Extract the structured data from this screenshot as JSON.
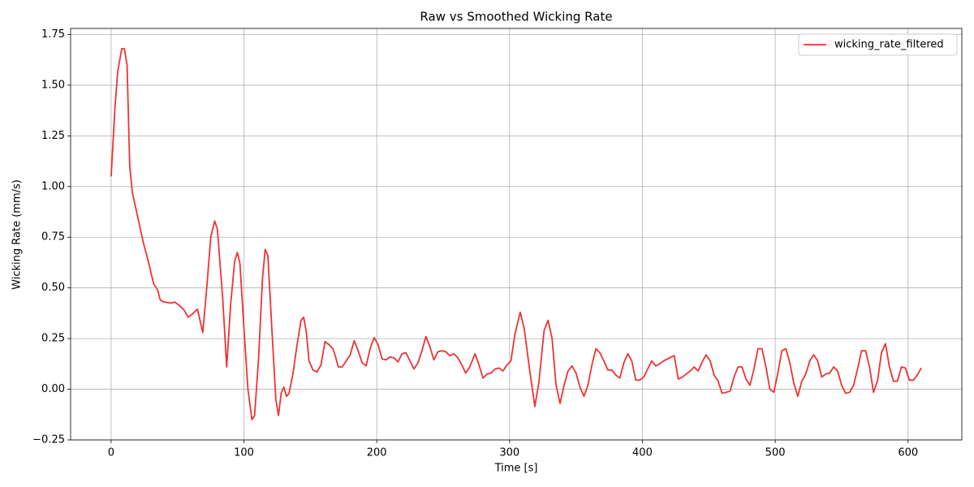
{
  "chart_data": {
    "type": "line",
    "title": "Raw vs Smoothed Wicking Rate",
    "x_label": "Time [s]",
    "y_label": "Wicking Rate (mm/s)",
    "xlim": [
      -30.5,
      640.5
    ],
    "ylim": [
      -0.25,
      1.78
    ],
    "xticks": [
      0,
      100,
      200,
      300,
      400,
      500,
      600
    ],
    "yticks": [
      {
        "value": -0.25,
        "label": "−0.25"
      },
      {
        "value": 0,
        "label": "0.00"
      },
      0.25,
      {
        "value": 0.5,
        "label": "0.50"
      },
      0.75,
      {
        "value": 1,
        "label": "1.00"
      },
      1.25,
      {
        "value": 1.5,
        "label": "1.50"
      },
      1.75
    ],
    "grid": true,
    "legend": "upper right",
    "x": [
      0,
      3,
      5,
      8,
      10,
      12,
      14,
      16,
      20,
      24,
      28,
      32,
      35,
      37,
      40,
      45,
      48,
      52,
      55,
      58,
      61,
      65,
      69,
      72,
      75,
      78,
      80,
      84,
      87,
      90,
      93,
      95,
      97,
      100,
      103,
      106,
      108,
      111,
      114,
      116,
      118,
      121,
      124,
      126,
      128,
      130,
      132,
      134,
      137,
      140,
      143,
      145,
      147,
      149,
      152,
      155,
      158,
      161,
      164,
      167,
      169,
      171,
      174,
      177,
      180,
      183,
      186,
      189,
      192,
      195,
      198,
      201,
      204,
      207,
      210,
      213,
      216,
      219,
      222,
      225,
      228,
      231,
      234,
      237,
      240,
      243,
      246,
      249,
      252,
      255,
      258,
      261,
      264,
      267,
      270,
      274,
      277,
      280,
      283,
      286,
      289,
      292,
      295,
      298,
      301,
      304,
      308,
      311,
      315,
      319,
      322,
      326,
      329,
      332,
      335,
      338,
      341,
      344,
      347,
      350,
      353,
      356,
      359,
      362,
      365,
      368,
      371,
      374,
      377,
      380,
      383,
      386,
      389,
      392,
      395,
      398,
      401,
      404,
      407,
      410,
      413,
      416,
      419,
      422,
      424,
      427,
      430,
      433,
      436,
      439,
      442,
      445,
      448,
      451,
      454,
      457,
      460,
      463,
      466,
      469,
      472,
      475,
      478,
      481,
      484,
      487,
      490,
      493,
      496,
      499,
      502,
      505,
      508,
      511,
      514,
      517,
      520,
      523,
      526,
      529,
      532,
      535,
      538,
      541,
      544,
      547,
      550,
      553,
      556,
      559,
      562,
      565,
      568,
      571,
      574,
      577,
      580,
      583,
      586,
      589,
      592,
      595,
      598,
      601,
      604,
      607,
      610
    ],
    "series": [
      {
        "name": "wicking_rate_filtered",
        "color": "#ee3333",
        "values": [
          1.05,
          1.4,
          1.57,
          1.68,
          1.68,
          1.6,
          1.1,
          0.97,
          0.85,
          0.73,
          0.63,
          0.52,
          0.49,
          0.44,
          0.43,
          0.425,
          0.43,
          0.41,
          0.39,
          0.355,
          0.37,
          0.395,
          0.28,
          0.5,
          0.75,
          0.83,
          0.79,
          0.45,
          0.11,
          0.42,
          0.63,
          0.675,
          0.62,
          0.3,
          0.0,
          -0.15,
          -0.13,
          0.15,
          0.55,
          0.69,
          0.66,
          0.3,
          -0.05,
          -0.13,
          -0.02,
          0.01,
          -0.035,
          -0.02,
          0.08,
          0.22,
          0.34,
          0.355,
          0.28,
          0.14,
          0.095,
          0.085,
          0.12,
          0.235,
          0.22,
          0.2,
          0.16,
          0.11,
          0.11,
          0.14,
          0.17,
          0.24,
          0.19,
          0.13,
          0.115,
          0.2,
          0.255,
          0.22,
          0.15,
          0.145,
          0.16,
          0.155,
          0.135,
          0.175,
          0.18,
          0.14,
          0.1,
          0.13,
          0.19,
          0.26,
          0.21,
          0.145,
          0.185,
          0.19,
          0.185,
          0.165,
          0.175,
          0.155,
          0.12,
          0.08,
          0.11,
          0.175,
          0.12,
          0.055,
          0.075,
          0.08,
          0.1,
          0.105,
          0.09,
          0.12,
          0.14,
          0.27,
          0.38,
          0.3,
          0.1,
          -0.085,
          0.03,
          0.29,
          0.34,
          0.25,
          0.02,
          -0.07,
          0.02,
          0.09,
          0.115,
          0.08,
          0.01,
          -0.035,
          0.02,
          0.12,
          0.2,
          0.18,
          0.14,
          0.095,
          0.095,
          0.07,
          0.055,
          0.13,
          0.175,
          0.14,
          0.045,
          0.045,
          0.06,
          0.1,
          0.14,
          0.115,
          0.125,
          0.14,
          0.15,
          0.16,
          0.165,
          0.05,
          0.06,
          0.075,
          0.09,
          0.11,
          0.09,
          0.135,
          0.17,
          0.14,
          0.07,
          0.04,
          -0.02,
          -0.015,
          -0.01,
          0.06,
          0.11,
          0.11,
          0.05,
          0.02,
          0.1,
          0.2,
          0.2,
          0.11,
          0.0,
          -0.015,
          0.08,
          0.19,
          0.2,
          0.13,
          0.03,
          -0.035,
          0.04,
          0.075,
          0.14,
          0.17,
          0.14,
          0.06,
          0.075,
          0.08,
          0.11,
          0.09,
          0.02,
          -0.02,
          -0.015,
          0.02,
          0.1,
          0.19,
          0.19,
          0.11,
          -0.015,
          0.04,
          0.18,
          0.225,
          0.11,
          0.04,
          0.04,
          0.11,
          0.105,
          0.045,
          0.045,
          0.07,
          0.105
        ]
      }
    ]
  }
}
